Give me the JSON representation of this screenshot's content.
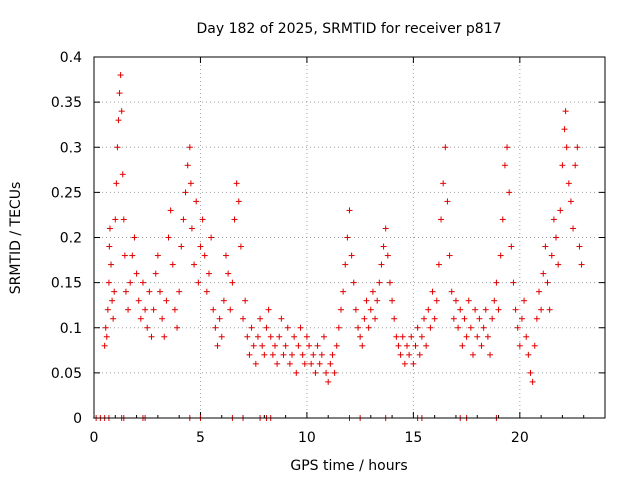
{
  "chart_data": {
    "type": "scatter",
    "title": "Day 182 of 2025, SRMTID for receiver p817",
    "xlabel": "GPS time / hours",
    "ylabel": "SRMTID / TECUs",
    "xlim": [
      0,
      24
    ],
    "ylim": [
      0,
      0.4
    ],
    "x_ticks": [
      0,
      5,
      10,
      15,
      20
    ],
    "x_tick_labels": [
      "0",
      "5",
      "10",
      "15",
      "20"
    ],
    "y_ticks": [
      0,
      0.05,
      0.1,
      0.15,
      0.2,
      0.25,
      0.3,
      0.35,
      0.4
    ],
    "y_tick_labels": [
      "0",
      "0.05",
      "0.1",
      "0.15",
      "0.2",
      "0.25",
      "0.3",
      "0.35",
      "0.4"
    ],
    "grid": true,
    "marker": "+",
    "color": "#e00000",
    "series": [
      {
        "name": "SRMTID",
        "points": [
          [
            0.5,
            0.08
          ],
          [
            0.55,
            0.1
          ],
          [
            0.6,
            0.09
          ],
          [
            0.65,
            0.12
          ],
          [
            0.7,
            0.15
          ],
          [
            0.72,
            0.19
          ],
          [
            0.75,
            0.21
          ],
          [
            0.8,
            0.17
          ],
          [
            0.85,
            0.13
          ],
          [
            0.9,
            0.11
          ],
          [
            0.95,
            0.14
          ],
          [
            1.0,
            0.22
          ],
          [
            1.05,
            0.26
          ],
          [
            1.1,
            0.3
          ],
          [
            1.15,
            0.33
          ],
          [
            1.2,
            0.36
          ],
          [
            1.25,
            0.38
          ],
          [
            1.3,
            0.34
          ],
          [
            1.35,
            0.27
          ],
          [
            1.4,
            0.22
          ],
          [
            1.45,
            0.18
          ],
          [
            1.5,
            0.14
          ],
          [
            1.6,
            0.12
          ],
          [
            1.7,
            0.15
          ],
          [
            1.8,
            0.18
          ],
          [
            1.9,
            0.2
          ],
          [
            2.0,
            0.16
          ],
          [
            2.1,
            0.13
          ],
          [
            2.2,
            0.11
          ],
          [
            2.3,
            0.15
          ],
          [
            2.4,
            0.12
          ],
          [
            2.5,
            0.1
          ],
          [
            2.6,
            0.14
          ],
          [
            2.7,
            0.09
          ],
          [
            2.8,
            0.12
          ],
          [
            2.9,
            0.16
          ],
          [
            3.0,
            0.18
          ],
          [
            3.1,
            0.14
          ],
          [
            3.2,
            0.11
          ],
          [
            3.3,
            0.09
          ],
          [
            3.4,
            0.13
          ],
          [
            3.5,
            0.2
          ],
          [
            3.6,
            0.23
          ],
          [
            3.7,
            0.17
          ],
          [
            3.8,
            0.12
          ],
          [
            3.9,
            0.1
          ],
          [
            4.0,
            0.14
          ],
          [
            4.1,
            0.19
          ],
          [
            4.2,
            0.22
          ],
          [
            4.3,
            0.25
          ],
          [
            4.4,
            0.28
          ],
          [
            4.5,
            0.3
          ],
          [
            4.55,
            0.26
          ],
          [
            4.6,
            0.21
          ],
          [
            4.7,
            0.17
          ],
          [
            4.8,
            0.24
          ],
          [
            4.9,
            0.15
          ],
          [
            5.0,
            0.19
          ],
          [
            5.1,
            0.22
          ],
          [
            5.2,
            0.18
          ],
          [
            5.3,
            0.14
          ],
          [
            5.4,
            0.16
          ],
          [
            5.5,
            0.2
          ],
          [
            5.6,
            0.12
          ],
          [
            5.7,
            0.1
          ],
          [
            5.8,
            0.08
          ],
          [
            5.9,
            0.11
          ],
          [
            6.0,
            0.09
          ],
          [
            6.1,
            0.13
          ],
          [
            6.2,
            0.18
          ],
          [
            6.3,
            0.16
          ],
          [
            6.4,
            0.12
          ],
          [
            6.5,
            0.15
          ],
          [
            6.6,
            0.22
          ],
          [
            6.7,
            0.26
          ],
          [
            6.8,
            0.24
          ],
          [
            6.9,
            0.19
          ],
          [
            7.0,
            0.11
          ],
          [
            7.1,
            0.13
          ],
          [
            7.2,
            0.09
          ],
          [
            7.3,
            0.07
          ],
          [
            7.4,
            0.1
          ],
          [
            7.5,
            0.08
          ],
          [
            7.6,
            0.06
          ],
          [
            7.7,
            0.09
          ],
          [
            7.8,
            0.11
          ],
          [
            7.9,
            0.08
          ],
          [
            8.0,
            0.07
          ],
          [
            8.1,
            0.1
          ],
          [
            8.2,
            0.12
          ],
          [
            8.3,
            0.09
          ],
          [
            8.4,
            0.07
          ],
          [
            8.5,
            0.08
          ],
          [
            8.6,
            0.06
          ],
          [
            8.7,
            0.09
          ],
          [
            8.8,
            0.11
          ],
          [
            8.9,
            0.07
          ],
          [
            9.0,
            0.08
          ],
          [
            9.1,
            0.1
          ],
          [
            9.2,
            0.06
          ],
          [
            9.3,
            0.07
          ],
          [
            9.4,
            0.09
          ],
          [
            9.5,
            0.05
          ],
          [
            9.6,
            0.08
          ],
          [
            9.7,
            0.1
          ],
          [
            9.8,
            0.07
          ],
          [
            9.9,
            0.06
          ],
          [
            10.0,
            0.09
          ],
          [
            10.1,
            0.08
          ],
          [
            10.2,
            0.06
          ],
          [
            10.3,
            0.07
          ],
          [
            10.4,
            0.05
          ],
          [
            10.5,
            0.08
          ],
          [
            10.6,
            0.06
          ],
          [
            10.7,
            0.07
          ],
          [
            10.8,
            0.09
          ],
          [
            10.9,
            0.05
          ],
          [
            11.0,
            0.04
          ],
          [
            11.1,
            0.06
          ],
          [
            11.2,
            0.07
          ],
          [
            11.3,
            0.05
          ],
          [
            11.4,
            0.08
          ],
          [
            11.5,
            0.1
          ],
          [
            11.6,
            0.12
          ],
          [
            11.7,
            0.14
          ],
          [
            11.8,
            0.17
          ],
          [
            11.9,
            0.2
          ],
          [
            12.0,
            0.23
          ],
          [
            12.1,
            0.18
          ],
          [
            12.2,
            0.15
          ],
          [
            12.3,
            0.12
          ],
          [
            12.4,
            0.1
          ],
          [
            12.5,
            0.09
          ],
          [
            12.6,
            0.08
          ],
          [
            12.7,
            0.11
          ],
          [
            12.8,
            0.13
          ],
          [
            12.9,
            0.1
          ],
          [
            13.0,
            0.12
          ],
          [
            13.1,
            0.14
          ],
          [
            13.2,
            0.11
          ],
          [
            13.3,
            0.13
          ],
          [
            13.4,
            0.15
          ],
          [
            13.5,
            0.17
          ],
          [
            13.6,
            0.19
          ],
          [
            13.7,
            0.21
          ],
          [
            13.8,
            0.18
          ],
          [
            13.9,
            0.15
          ],
          [
            14.0,
            0.13
          ],
          [
            14.1,
            0.11
          ],
          [
            14.2,
            0.09
          ],
          [
            14.3,
            0.08
          ],
          [
            14.4,
            0.07
          ],
          [
            14.5,
            0.09
          ],
          [
            14.6,
            0.06
          ],
          [
            14.7,
            0.08
          ],
          [
            14.8,
            0.07
          ],
          [
            14.9,
            0.09
          ],
          [
            15.0,
            0.06
          ],
          [
            15.1,
            0.08
          ],
          [
            15.2,
            0.1
          ],
          [
            15.3,
            0.07
          ],
          [
            15.4,
            0.09
          ],
          [
            15.5,
            0.11
          ],
          [
            15.6,
            0.08
          ],
          [
            15.7,
            0.12
          ],
          [
            15.8,
            0.1
          ],
          [
            15.9,
            0.14
          ],
          [
            16.0,
            0.11
          ],
          [
            16.1,
            0.13
          ],
          [
            16.2,
            0.17
          ],
          [
            16.3,
            0.22
          ],
          [
            16.4,
            0.26
          ],
          [
            16.5,
            0.3
          ],
          [
            16.6,
            0.24
          ],
          [
            16.7,
            0.18
          ],
          [
            16.8,
            0.14
          ],
          [
            16.9,
            0.11
          ],
          [
            17.0,
            0.13
          ],
          [
            17.1,
            0.1
          ],
          [
            17.2,
            0.12
          ],
          [
            17.3,
            0.08
          ],
          [
            17.4,
            0.11
          ],
          [
            17.5,
            0.09
          ],
          [
            17.6,
            0.13
          ],
          [
            17.7,
            0.1
          ],
          [
            17.8,
            0.07
          ],
          [
            17.9,
            0.12
          ],
          [
            18.0,
            0.09
          ],
          [
            18.1,
            0.11
          ],
          [
            18.2,
            0.08
          ],
          [
            18.3,
            0.1
          ],
          [
            18.4,
            0.12
          ],
          [
            18.5,
            0.09
          ],
          [
            18.6,
            0.07
          ],
          [
            18.7,
            0.11
          ],
          [
            18.8,
            0.13
          ],
          [
            18.9,
            0.15
          ],
          [
            19.0,
            0.12
          ],
          [
            19.1,
            0.18
          ],
          [
            19.2,
            0.22
          ],
          [
            19.3,
            0.28
          ],
          [
            19.4,
            0.3
          ],
          [
            19.5,
            0.25
          ],
          [
            19.6,
            0.19
          ],
          [
            19.7,
            0.15
          ],
          [
            19.8,
            0.12
          ],
          [
            19.9,
            0.1
          ],
          [
            20.0,
            0.08
          ],
          [
            20.1,
            0.11
          ],
          [
            20.2,
            0.13
          ],
          [
            20.3,
            0.09
          ],
          [
            20.4,
            0.07
          ],
          [
            20.5,
            0.05
          ],
          [
            20.6,
            0.04
          ],
          [
            20.7,
            0.08
          ],
          [
            20.8,
            0.11
          ],
          [
            20.9,
            0.14
          ],
          [
            21.0,
            0.12
          ],
          [
            21.1,
            0.16
          ],
          [
            21.2,
            0.19
          ],
          [
            21.3,
            0.15
          ],
          [
            21.4,
            0.12
          ],
          [
            21.5,
            0.18
          ],
          [
            21.6,
            0.22
          ],
          [
            21.7,
            0.2
          ],
          [
            21.8,
            0.17
          ],
          [
            21.9,
            0.23
          ],
          [
            22.0,
            0.28
          ],
          [
            22.1,
            0.32
          ],
          [
            22.15,
            0.34
          ],
          [
            22.2,
            0.3
          ],
          [
            22.3,
            0.26
          ],
          [
            22.4,
            0.24
          ],
          [
            22.5,
            0.21
          ],
          [
            22.6,
            0.28
          ],
          [
            22.7,
            0.3
          ],
          [
            22.8,
            0.19
          ],
          [
            22.9,
            0.17
          ]
        ]
      }
    ],
    "zero_points_x": [
      0.1,
      0.3,
      0.5,
      0.7,
      1.3,
      1.4,
      2.3,
      2.4,
      4.5,
      5.0,
      6.5,
      7.0,
      7.8,
      8.1,
      8.3,
      12.0,
      12.5,
      13.7,
      15.2,
      15.4,
      17.2,
      17.5,
      18.9
    ]
  }
}
